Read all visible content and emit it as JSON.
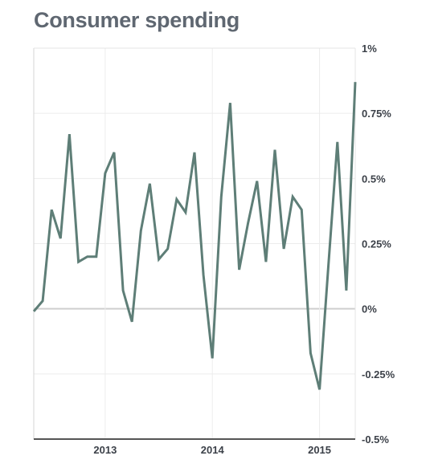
{
  "chart_data": {
    "type": "line",
    "title": "Consumer spending",
    "xlabel": "",
    "ylabel": "",
    "ylim": [
      -0.5,
      1
    ],
    "y_ticks": [
      {
        "value": 1,
        "label": "1%"
      },
      {
        "value": 0.75,
        "label": "0.75%"
      },
      {
        "value": 0.5,
        "label": "0.5%"
      },
      {
        "value": 0.25,
        "label": "0.25%"
      },
      {
        "value": 0,
        "label": "0%"
      },
      {
        "value": -0.25,
        "label": "-0.25%"
      },
      {
        "value": -0.5,
        "label": "-0.5%"
      }
    ],
    "x_ticks": [
      {
        "date": "2013-01",
        "label": "2013"
      },
      {
        "date": "2014-01",
        "label": "2014"
      },
      {
        "date": "2015-01",
        "label": "2015"
      }
    ],
    "xlim": [
      "2012-05",
      "2015-05"
    ],
    "grid": true,
    "line_color": "#5e7e77",
    "series": [
      {
        "x": [
          "2012-05",
          "2012-06",
          "2012-07",
          "2012-08",
          "2012-09",
          "2012-10",
          "2012-11",
          "2012-12",
          "2013-01",
          "2013-02",
          "2013-03",
          "2013-04",
          "2013-05",
          "2013-06",
          "2013-07",
          "2013-08",
          "2013-09",
          "2013-10",
          "2013-11",
          "2013-12",
          "2014-01",
          "2014-02",
          "2014-03",
          "2014-04",
          "2014-05",
          "2014-06",
          "2014-07",
          "2014-08",
          "2014-09",
          "2014-10",
          "2014-11",
          "2014-12",
          "2015-01",
          "2015-02",
          "2015-03",
          "2015-04",
          "2015-05"
        ],
        "values": [
          -0.01,
          0.03,
          0.38,
          0.27,
          0.67,
          0.18,
          0.2,
          0.2,
          0.52,
          0.6,
          0.07,
          -0.05,
          0.3,
          0.48,
          0.19,
          0.23,
          0.42,
          0.37,
          0.6,
          0.13,
          -0.19,
          0.43,
          0.79,
          0.15,
          0.33,
          0.49,
          0.18,
          0.61,
          0.23,
          0.43,
          0.38,
          -0.17,
          -0.31,
          0.17,
          0.64,
          0.07,
          0.87
        ]
      }
    ]
  }
}
